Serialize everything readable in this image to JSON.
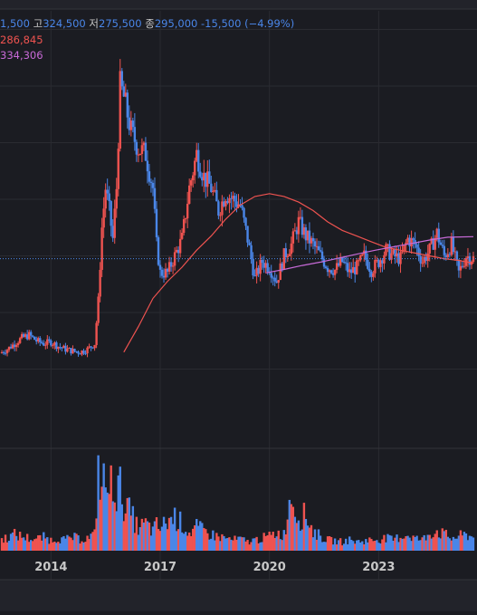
{
  "legend": {
    "open_value": "1,500",
    "high_label": "고",
    "high_value": "324,500",
    "low_label": "저",
    "low_value": "275,500",
    "close_label": "종",
    "close_value": "295,000",
    "change": "-15,500",
    "change_pct": "(−4.99%)",
    "ma1_value": "286,845",
    "ma2_value": "334,306"
  },
  "colors": {
    "background": "#1b1c22",
    "up": "#ef5350",
    "down": "#4a86e8",
    "ma_short": "#ef5350",
    "ma_long": "#c86ad8",
    "grid": "#2a2b31",
    "axis_text": "#c8c8c8"
  },
  "chart_data": {
    "type": "candlestick",
    "x_tick_labels": [
      "2014",
      "2017",
      "2020",
      "2023"
    ],
    "x_tick_years": [
      2014,
      2017,
      2020,
      2023
    ],
    "xlim": [
      2012.6,
      2025.7
    ],
    "ylim": [
      0,
      720000
    ],
    "grid": true,
    "current_price": 295000,
    "close_series": [
      [
        2012.6,
        128000
      ],
      [
        2012.8,
        135000
      ],
      [
        2013.0,
        145000
      ],
      [
        2013.2,
        155000
      ],
      [
        2013.4,
        160000
      ],
      [
        2013.6,
        150000
      ],
      [
        2013.8,
        145000
      ],
      [
        2014.0,
        148000
      ],
      [
        2014.2,
        140000
      ],
      [
        2014.4,
        135000
      ],
      [
        2014.6,
        132000
      ],
      [
        2014.8,
        130000
      ],
      [
        2015.0,
        135000
      ],
      [
        2015.2,
        145000
      ],
      [
        2015.3,
        220000
      ],
      [
        2015.4,
        350000
      ],
      [
        2015.5,
        420000
      ],
      [
        2015.6,
        380000
      ],
      [
        2015.7,
        330000
      ],
      [
        2015.8,
        420000
      ],
      [
        2015.9,
        600000
      ],
      [
        2016.0,
        580000
      ],
      [
        2016.2,
        520000
      ],
      [
        2016.4,
        490000
      ],
      [
        2016.6,
        480000
      ],
      [
        2016.8,
        420000
      ],
      [
        2016.9,
        320000
      ],
      [
        2017.0,
        270000
      ],
      [
        2017.2,
        270000
      ],
      [
        2017.4,
        300000
      ],
      [
        2017.6,
        330000
      ],
      [
        2017.8,
        420000
      ],
      [
        2018.0,
        480000
      ],
      [
        2018.2,
        440000
      ],
      [
        2018.4,
        420000
      ],
      [
        2018.6,
        380000
      ],
      [
        2018.8,
        410000
      ],
      [
        2019.0,
        400000
      ],
      [
        2019.2,
        390000
      ],
      [
        2019.4,
        330000
      ],
      [
        2019.6,
        260000
      ],
      [
        2019.8,
        290000
      ],
      [
        2020.0,
        280000
      ],
      [
        2020.2,
        255000
      ],
      [
        2020.4,
        300000
      ],
      [
        2020.6,
        320000
      ],
      [
        2020.8,
        360000
      ],
      [
        2021.0,
        335000
      ],
      [
        2021.2,
        320000
      ],
      [
        2021.4,
        300000
      ],
      [
        2021.6,
        280000
      ],
      [
        2021.8,
        275000
      ],
      [
        2022.0,
        290000
      ],
      [
        2022.2,
        270000
      ],
      [
        2022.4,
        280000
      ],
      [
        2022.6,
        300000
      ],
      [
        2022.8,
        275000
      ],
      [
        2023.0,
        290000
      ],
      [
        2023.2,
        310000
      ],
      [
        2023.4,
        300000
      ],
      [
        2023.6,
        295000
      ],
      [
        2023.8,
        330000
      ],
      [
        2024.0,
        320000
      ],
      [
        2024.2,
        290000
      ],
      [
        2024.4,
        310000
      ],
      [
        2024.6,
        340000
      ],
      [
        2024.8,
        300000
      ],
      [
        2025.0,
        320000
      ],
      [
        2025.2,
        270000
      ],
      [
        2025.4,
        300000
      ],
      [
        2025.6,
        295000
      ]
    ],
    "ma_short_series": [
      [
        2016.0,
        130000
      ],
      [
        2016.4,
        175000
      ],
      [
        2016.8,
        225000
      ],
      [
        2017.2,
        255000
      ],
      [
        2017.6,
        280000
      ],
      [
        2018.0,
        310000
      ],
      [
        2018.4,
        335000
      ],
      [
        2018.8,
        365000
      ],
      [
        2019.2,
        390000
      ],
      [
        2019.6,
        405000
      ],
      [
        2020.0,
        410000
      ],
      [
        2020.4,
        405000
      ],
      [
        2020.8,
        395000
      ],
      [
        2021.2,
        380000
      ],
      [
        2021.6,
        360000
      ],
      [
        2022.0,
        345000
      ],
      [
        2022.4,
        335000
      ],
      [
        2022.8,
        325000
      ],
      [
        2023.2,
        315000
      ],
      [
        2023.6,
        310000
      ],
      [
        2024.0,
        305000
      ],
      [
        2024.4,
        300000
      ],
      [
        2024.8,
        295000
      ],
      [
        2025.2,
        292000
      ],
      [
        2025.6,
        287000
      ]
    ],
    "ma_long_series": [
      [
        2019.9,
        270000
      ],
      [
        2020.4,
        276000
      ],
      [
        2020.9,
        283000
      ],
      [
        2021.4,
        289000
      ],
      [
        2021.9,
        296000
      ],
      [
        2022.4,
        303000
      ],
      [
        2022.9,
        310000
      ],
      [
        2023.4,
        316000
      ],
      [
        2023.9,
        322000
      ],
      [
        2024.4,
        328000
      ],
      [
        2024.9,
        333000
      ],
      [
        2025.6,
        334000
      ]
    ],
    "volume_series": [
      [
        2012.6,
        12
      ],
      [
        2012.8,
        15
      ],
      [
        2013.0,
        18
      ],
      [
        2013.2,
        16
      ],
      [
        2013.4,
        14
      ],
      [
        2013.6,
        13
      ],
      [
        2013.8,
        15
      ],
      [
        2014.0,
        12
      ],
      [
        2014.2,
        14
      ],
      [
        2014.4,
        12
      ],
      [
        2014.6,
        15
      ],
      [
        2014.8,
        13
      ],
      [
        2015.0,
        14
      ],
      [
        2015.2,
        18
      ],
      [
        2015.3,
        90
      ],
      [
        2015.4,
        70
      ],
      [
        2015.5,
        80
      ],
      [
        2015.6,
        60
      ],
      [
        2015.7,
        85
      ],
      [
        2015.8,
        65
      ],
      [
        2015.9,
        70
      ],
      [
        2016.0,
        55
      ],
      [
        2016.2,
        40
      ],
      [
        2016.4,
        25
      ],
      [
        2016.6,
        30
      ],
      [
        2016.8,
        22
      ],
      [
        2016.9,
        28
      ],
      [
        2017.0,
        25
      ],
      [
        2017.2,
        33
      ],
      [
        2017.4,
        38
      ],
      [
        2017.6,
        30
      ],
      [
        2017.8,
        20
      ],
      [
        2018.0,
        26
      ],
      [
        2018.2,
        22
      ],
      [
        2018.4,
        18
      ],
      [
        2018.6,
        16
      ],
      [
        2018.8,
        14
      ],
      [
        2019.0,
        12
      ],
      [
        2019.2,
        13
      ],
      [
        2019.4,
        10
      ],
      [
        2019.6,
        12
      ],
      [
        2019.8,
        14
      ],
      [
        2020.0,
        16
      ],
      [
        2020.2,
        20
      ],
      [
        2020.4,
        18
      ],
      [
        2020.6,
        65
      ],
      [
        2020.8,
        36
      ],
      [
        2021.0,
        40
      ],
      [
        2021.2,
        22
      ],
      [
        2021.4,
        16
      ],
      [
        2021.6,
        12
      ],
      [
        2021.8,
        11
      ],
      [
        2022.0,
        10
      ],
      [
        2022.2,
        12
      ],
      [
        2022.4,
        10
      ],
      [
        2022.6,
        11
      ],
      [
        2022.8,
        12
      ],
      [
        2023.0,
        13
      ],
      [
        2023.2,
        14
      ],
      [
        2023.4,
        12
      ],
      [
        2023.6,
        16
      ],
      [
        2023.8,
        18
      ],
      [
        2024.0,
        14
      ],
      [
        2024.2,
        12
      ],
      [
        2024.4,
        20
      ],
      [
        2024.6,
        22
      ],
      [
        2024.8,
        18
      ],
      [
        2025.0,
        14
      ],
      [
        2025.2,
        16
      ],
      [
        2025.4,
        18
      ],
      [
        2025.6,
        15
      ]
    ],
    "volume_ylim": [
      0,
      100
    ]
  }
}
